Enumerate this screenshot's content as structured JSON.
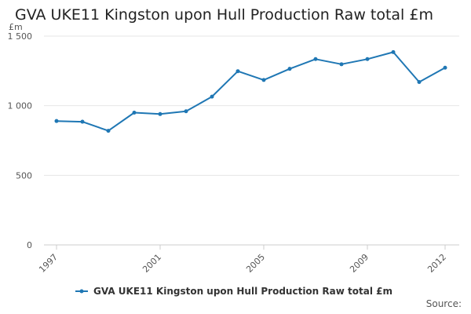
{
  "chart_data": {
    "type": "line",
    "title": "GVA UKE11 Kingston upon Hull Production Raw total £m",
    "y_unit": "£m",
    "xlabel": "",
    "ylabel": "",
    "ylim": [
      0,
      1500
    ],
    "y_ticks": [
      0,
      500,
      1000,
      1500
    ],
    "y_tick_labels": [
      "0",
      "500",
      "1 000",
      "1 500"
    ],
    "x_range": [
      1997,
      2012
    ],
    "x_tick_labels": [
      "1997",
      "2001",
      "2005",
      "2009",
      "2012"
    ],
    "grid": true,
    "legend_position": "bottom",
    "series": [
      {
        "name": "GVA UKE11 Kingston upon Hull Production Raw total £m",
        "color": "#1f77b4",
        "x": [
          1997,
          1998,
          1999,
          2000,
          2001,
          2002,
          2003,
          2004,
          2005,
          2006,
          2007,
          2008,
          2009,
          2010,
          2011,
          2012
        ],
        "values": [
          890,
          885,
          820,
          950,
          940,
          960,
          1065,
          1248,
          1185,
          1265,
          1335,
          1298,
          1335,
          1385,
          1170,
          1273
        ]
      }
    ]
  },
  "source_label": "Source:"
}
